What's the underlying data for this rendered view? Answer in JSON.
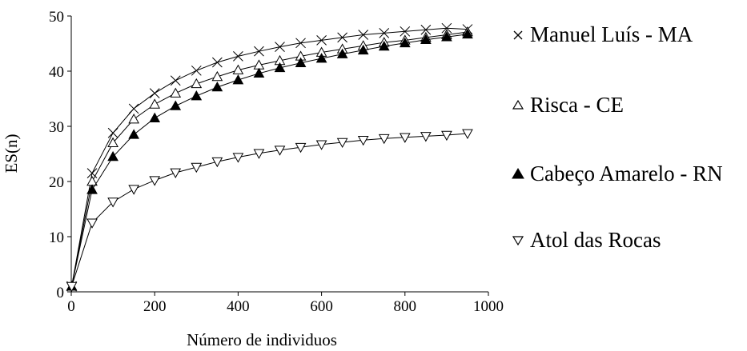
{
  "chart_data": {
    "type": "line",
    "xlabel": "Número de individuos",
    "ylabel": "ES(n)",
    "xlim": [
      0,
      1000
    ],
    "ylim": [
      0,
      50
    ],
    "xticks": [
      0,
      200,
      400,
      600,
      800,
      1000
    ],
    "yticks": [
      0,
      10,
      20,
      30,
      40,
      50
    ],
    "xtick_labels": [
      "0",
      "200",
      "400",
      "600",
      "800",
      "1000"
    ],
    "ytick_labels": [
      "0",
      "10",
      "20",
      "30",
      "40",
      "50"
    ],
    "grid": false,
    "legend_position": "right",
    "x": [
      1,
      50,
      100,
      150,
      200,
      250,
      300,
      350,
      400,
      450,
      500,
      550,
      600,
      650,
      700,
      750,
      800,
      850,
      900,
      950
    ],
    "series": [
      {
        "name": "Manuel Luís - MA",
        "marker": "x",
        "values": [
          1,
          21.5,
          28.8,
          33.2,
          36.0,
          38.3,
          40.1,
          41.6,
          42.7,
          43.6,
          44.4,
          45.1,
          45.6,
          46.1,
          46.6,
          46.9,
          47.2,
          47.5,
          47.8,
          47.6
        ]
      },
      {
        "name": "Risca - CE",
        "marker": "triangle-up-open",
        "values": [
          1,
          20.0,
          27.0,
          31.3,
          34.0,
          36.0,
          37.7,
          39.0,
          40.2,
          41.1,
          41.9,
          42.7,
          43.4,
          44.0,
          44.6,
          45.2,
          45.6,
          46.1,
          46.6,
          47.1
        ]
      },
      {
        "name": "Cabeço Amarelo - RN",
        "marker": "triangle-up-filled",
        "values": [
          1,
          18.5,
          24.5,
          28.5,
          31.5,
          33.7,
          35.5,
          37.1,
          38.4,
          39.6,
          40.6,
          41.5,
          42.3,
          43.1,
          43.8,
          44.5,
          45.1,
          45.7,
          46.2,
          46.7
        ]
      },
      {
        "name": "Atol das Rocas",
        "marker": "triangle-down-open",
        "values": [
          1,
          12.5,
          16.3,
          18.6,
          20.2,
          21.6,
          22.6,
          23.6,
          24.4,
          25.1,
          25.7,
          26.2,
          26.7,
          27.1,
          27.5,
          27.8,
          28.0,
          28.2,
          28.4,
          28.7
        ]
      }
    ]
  }
}
